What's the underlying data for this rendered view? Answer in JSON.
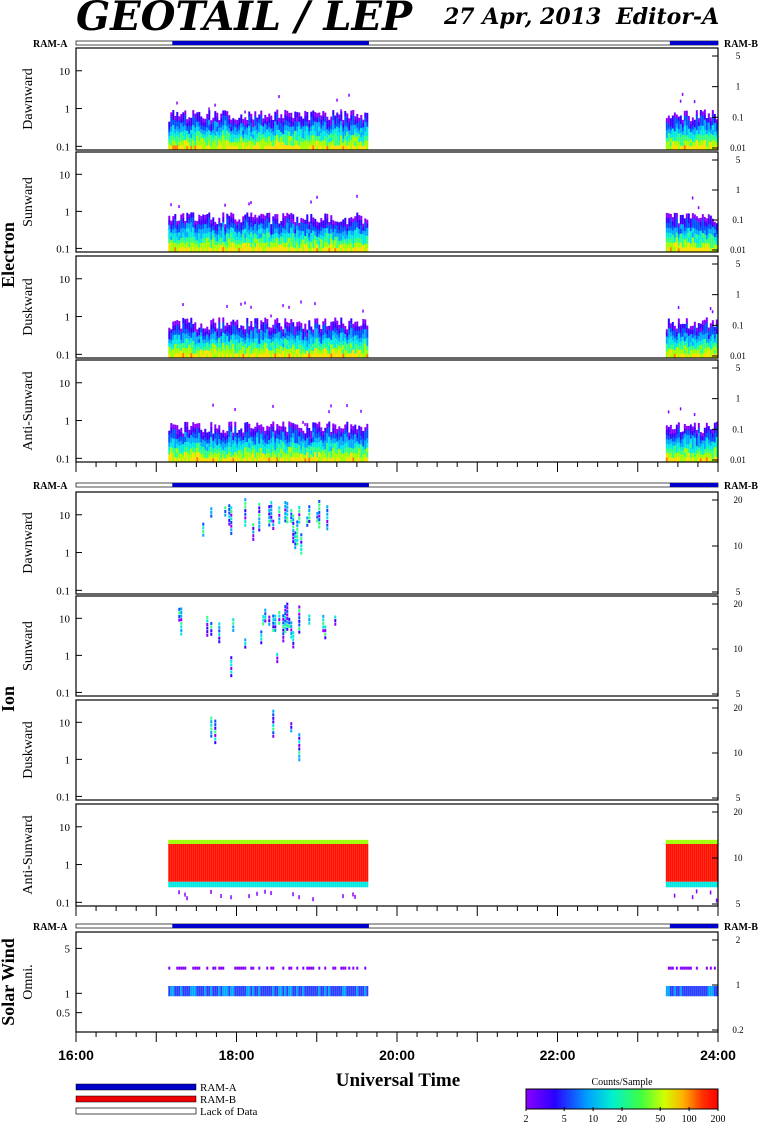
{
  "header": {
    "title": "GEOTAIL / LEP",
    "date": "27 Apr, 2013",
    "editor": "Editor-A"
  },
  "groups": [
    {
      "label": "Electron",
      "ram_left": "RAM-A",
      "ram_right": "RAM-B"
    },
    {
      "label": "Ion",
      "ram_left": "RAM-A",
      "ram_right": "RAM-B"
    },
    {
      "label": "Solar Wind",
      "ram_left": "RAM-A",
      "ram_right": "RAM-B"
    }
  ],
  "panels": [
    {
      "label": "Dawnward",
      "group": "Electron",
      "left_ticks": [
        "10",
        "1",
        "0.1"
      ],
      "right_ticks": [
        "5",
        "1",
        "0.1",
        "0.01"
      ]
    },
    {
      "label": "Sunward",
      "group": "Electron",
      "left_ticks": [
        "10",
        "1",
        "0.1"
      ],
      "right_ticks": [
        "5",
        "1",
        "0.1",
        "0.01"
      ]
    },
    {
      "label": "Duskward",
      "group": "Electron",
      "left_ticks": [
        "10",
        "1",
        "0.1"
      ],
      "right_ticks": [
        "5",
        "1",
        "0.1",
        "0.01"
      ]
    },
    {
      "label": "Anti-Sunward",
      "group": "Electron",
      "left_ticks": [
        "10",
        "1",
        "0.1"
      ],
      "right_ticks": [
        "5",
        "1",
        "0.1",
        "0.01"
      ]
    },
    {
      "label": "Dawnward",
      "group": "Ion",
      "left_ticks": [
        "10",
        "1",
        "0.1"
      ],
      "right_ticks": [
        "20",
        "10",
        "5"
      ]
    },
    {
      "label": "Sunward",
      "group": "Ion",
      "left_ticks": [
        "10",
        "1",
        "0.1"
      ],
      "right_ticks": [
        "20",
        "10",
        "5"
      ]
    },
    {
      "label": "Duskward",
      "group": "Ion",
      "left_ticks": [
        "10",
        "1",
        "0.1"
      ],
      "right_ticks": [
        "20",
        "10",
        "5"
      ]
    },
    {
      "label": "Anti-Sunward",
      "group": "Ion",
      "left_ticks": [
        "10",
        "1",
        "0.1"
      ],
      "right_ticks": [
        "20",
        "10",
        "5"
      ]
    },
    {
      "label": "Omni.",
      "group": "Solar Wind",
      "left_ticks": [
        "5",
        "1",
        "0.5"
      ],
      "right_ticks": [
        "2",
        "1",
        "0.2"
      ]
    }
  ],
  "x_axis": {
    "label": "Universal Time",
    "ticks": [
      "16:00",
      "18:00",
      "20:00",
      "22:00",
      "24:00"
    ]
  },
  "legend": {
    "items": [
      {
        "label": "RAM-A",
        "color": "#0000cc"
      },
      {
        "label": "RAM-B",
        "color": "#ee0000"
      },
      {
        "label": "Lack of Data",
        "color": "#ffffff"
      }
    ]
  },
  "colorbar": {
    "title": "Counts/Sample",
    "ticks": [
      "2",
      "5",
      "10",
      "20",
      "50",
      "100",
      "200"
    ],
    "scale": "log",
    "range": [
      2,
      200
    ]
  },
  "chart_data": {
    "type": "heatmap",
    "title": "GEOTAIL / LEP",
    "xlabel": "Universal Time",
    "x_range_hours": [
      16,
      24
    ],
    "ram_a_intervals_hours": [
      [
        17.2,
        19.65
      ],
      [
        23.4,
        24.0
      ]
    ],
    "data_intervals_hours": [
      [
        17.15,
        19.65
      ],
      [
        23.35,
        24.0
      ]
    ],
    "panels": [
      {
        "group": "Electron",
        "name": "Dawnward",
        "ylim": [
          0.08,
          40
        ],
        "scale": "log"
      },
      {
        "group": "Electron",
        "name": "Sunward",
        "ylim": [
          0.08,
          40
        ],
        "scale": "log"
      },
      {
        "group": "Electron",
        "name": "Duskward",
        "ylim": [
          0.08,
          40
        ],
        "scale": "log"
      },
      {
        "group": "Electron",
        "name": "Anti-Sunward",
        "ylim": [
          0.08,
          40
        ],
        "scale": "log"
      },
      {
        "group": "Ion",
        "name": "Dawnward",
        "ylim": [
          0.08,
          40
        ],
        "scale": "log"
      },
      {
        "group": "Ion",
        "name": "Sunward",
        "ylim": [
          0.08,
          40
        ],
        "scale": "log"
      },
      {
        "group": "Ion",
        "name": "Duskward",
        "ylim": [
          0.08,
          40
        ],
        "scale": "log"
      },
      {
        "group": "Ion",
        "name": "Anti-Sunward",
        "ylim": [
          0.08,
          40
        ],
        "scale": "log"
      },
      {
        "group": "Solar Wind",
        "name": "Omni.",
        "ylim": [
          0.25,
          9
        ],
        "scale": "log"
      }
    ]
  }
}
